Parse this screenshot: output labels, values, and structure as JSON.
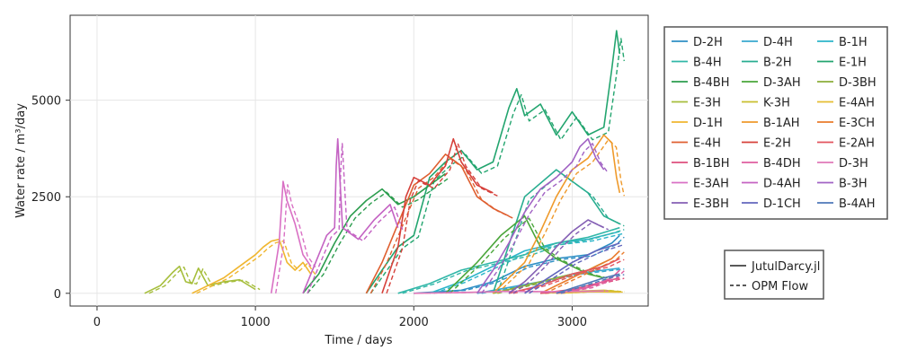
{
  "chart_data": {
    "type": "line",
    "title": "",
    "xlabel": "Time / days",
    "ylabel": "Water rate / m³/day",
    "xlim": [
      -170,
      3480
    ],
    "ylim": [
      -330,
      7200
    ],
    "xticks": [
      0,
      1000,
      2000,
      3000
    ],
    "yticks": [
      0,
      2500,
      5000
    ],
    "grid": true,
    "legend_position": "right",
    "style_legend": [
      {
        "label": "JutulDarcy.jl",
        "style": "solid"
      },
      {
        "label": "OPM Flow",
        "style": "dashed"
      }
    ],
    "series": [
      {
        "name": "D-2H",
        "color": "#2f8fc5",
        "points": [
          [
            2000,
            0
          ],
          [
            2300,
            80
          ],
          [
            2500,
            300
          ],
          [
            2700,
            700
          ],
          [
            2900,
            900
          ],
          [
            3100,
            1000
          ],
          [
            3250,
            1300
          ],
          [
            3300,
            1500
          ]
        ]
      },
      {
        "name": "D-4H",
        "color": "#38a8cf",
        "points": [
          [
            2400,
            0
          ],
          [
            2600,
            150
          ],
          [
            2800,
            300
          ],
          [
            3000,
            500
          ],
          [
            3200,
            600
          ],
          [
            3300,
            650
          ]
        ]
      },
      {
        "name": "B-1H",
        "color": "#2bb5c9",
        "points": [
          [
            2100,
            0
          ],
          [
            2300,
            300
          ],
          [
            2500,
            700
          ],
          [
            2700,
            1100
          ],
          [
            2900,
            1300
          ],
          [
            3100,
            1400
          ],
          [
            3300,
            1600
          ]
        ]
      },
      {
        "name": "B-4H",
        "color": "#31b7a8",
        "points": [
          [
            1900,
            0
          ],
          [
            2100,
            250
          ],
          [
            2300,
            600
          ],
          [
            2500,
            800
          ],
          [
            2700,
            1000
          ],
          [
            2900,
            1300
          ],
          [
            3100,
            1450
          ],
          [
            3300,
            1700
          ]
        ]
      },
      {
        "name": "B-2H",
        "color": "#28ad90",
        "points": [
          [
            2500,
            0
          ],
          [
            2700,
            2500
          ],
          [
            2900,
            3200
          ],
          [
            3100,
            2600
          ],
          [
            3200,
            2000
          ],
          [
            3300,
            1800
          ]
        ]
      },
      {
        "name": "E-1H",
        "color": "#23a56f",
        "points": [
          [
            1700,
            0
          ],
          [
            1800,
            600
          ],
          [
            1900,
            1200
          ],
          [
            2000,
            1500
          ],
          [
            2100,
            3000
          ],
          [
            2200,
            3400
          ],
          [
            2300,
            3700
          ],
          [
            2400,
            3200
          ],
          [
            2500,
            3400
          ],
          [
            2600,
            4800
          ],
          [
            2650,
            5300
          ],
          [
            2700,
            4600
          ],
          [
            2800,
            4900
          ],
          [
            2900,
            4100
          ],
          [
            3000,
            4700
          ],
          [
            3100,
            4100
          ],
          [
            3200,
            4300
          ],
          [
            3250,
            5800
          ],
          [
            3280,
            6800
          ],
          [
            3300,
            6200
          ]
        ]
      },
      {
        "name": "B-4BH",
        "color": "#2c9d4e",
        "points": [
          [
            1300,
            0
          ],
          [
            1400,
            500
          ],
          [
            1500,
            1300
          ],
          [
            1600,
            2000
          ],
          [
            1700,
            2400
          ],
          [
            1800,
            2700
          ],
          [
            1900,
            2300
          ],
          [
            2000,
            2500
          ],
          [
            2100,
            2800
          ],
          [
            2200,
            3100
          ]
        ]
      },
      {
        "name": "D-3AH",
        "color": "#4aa63a",
        "points": [
          [
            2200,
            0
          ],
          [
            2400,
            800
          ],
          [
            2550,
            1500
          ],
          [
            2700,
            2000
          ],
          [
            2800,
            1200
          ],
          [
            2900,
            900
          ],
          [
            3000,
            700
          ],
          [
            3100,
            500
          ],
          [
            3200,
            400
          ]
        ]
      },
      {
        "name": "D-3BH",
        "color": "#8cae3a",
        "points": [
          [
            2500,
            0
          ],
          [
            2700,
            200
          ],
          [
            2900,
            400
          ],
          [
            3100,
            600
          ],
          [
            3200,
            800
          ]
        ]
      },
      {
        "name": "E-3H",
        "color": "#a6be3c",
        "points": [
          [
            300,
            0
          ],
          [
            400,
            200
          ],
          [
            480,
            550
          ],
          [
            520,
            700
          ],
          [
            560,
            300
          ],
          [
            600,
            250
          ],
          [
            640,
            650
          ],
          [
            700,
            200
          ],
          [
            800,
            300
          ],
          [
            900,
            350
          ],
          [
            1000,
            100
          ]
        ]
      },
      {
        "name": "K-3H",
        "color": "#c9bf2f",
        "points": [
          [
            2800,
            0
          ],
          [
            3000,
            50
          ],
          [
            3200,
            80
          ],
          [
            3300,
            40
          ]
        ]
      },
      {
        "name": "E-4AH",
        "color": "#e5be32",
        "points": [
          [
            2900,
            0
          ],
          [
            3100,
            40
          ],
          [
            3300,
            30
          ]
        ]
      },
      {
        "name": "D-1H",
        "color": "#f0b62f",
        "points": [
          [
            600,
            0
          ],
          [
            700,
            200
          ],
          [
            800,
            400
          ],
          [
            900,
            700
          ],
          [
            1000,
            1000
          ],
          [
            1050,
            1200
          ],
          [
            1100,
            1350
          ],
          [
            1150,
            1400
          ],
          [
            1200,
            800
          ],
          [
            1250,
            600
          ],
          [
            1300,
            800
          ],
          [
            1350,
            500
          ]
        ]
      },
      {
        "name": "B-1AH",
        "color": "#ef9a2b",
        "points": [
          [
            2500,
            0
          ],
          [
            2700,
            800
          ],
          [
            2800,
            1600
          ],
          [
            2900,
            2500
          ],
          [
            3000,
            3200
          ],
          [
            3100,
            3500
          ],
          [
            3150,
            3800
          ],
          [
            3200,
            4100
          ],
          [
            3250,
            3900
          ],
          [
            3280,
            3000
          ],
          [
            3300,
            2600
          ]
        ]
      },
      {
        "name": "E-3CH",
        "color": "#e97c2c",
        "points": [
          [
            2800,
            0
          ],
          [
            2950,
            300
          ],
          [
            3100,
            600
          ],
          [
            3250,
            900
          ],
          [
            3300,
            1100
          ]
        ]
      },
      {
        "name": "E-4H",
        "color": "#df5f30",
        "points": [
          [
            1700,
            0
          ],
          [
            1800,
            800
          ],
          [
            1900,
            1800
          ],
          [
            2000,
            2800
          ],
          [
            2100,
            3100
          ],
          [
            2200,
            3600
          ],
          [
            2300,
            3300
          ],
          [
            2400,
            2500
          ],
          [
            2500,
            2200
          ],
          [
            2600,
            2000
          ]
        ]
      },
      {
        "name": "E-2H",
        "color": "#d6403a",
        "points": [
          [
            1800,
            0
          ],
          [
            1900,
            1200
          ],
          [
            1950,
            2500
          ],
          [
            2000,
            3000
          ],
          [
            2100,
            2800
          ],
          [
            2200,
            3300
          ],
          [
            2250,
            4000
          ],
          [
            2300,
            3400
          ],
          [
            2400,
            2800
          ],
          [
            2500,
            2600
          ]
        ]
      },
      {
        "name": "E-2AH",
        "color": "#e3545e",
        "points": [
          [
            2600,
            0
          ],
          [
            2800,
            200
          ],
          [
            3000,
            500
          ],
          [
            3200,
            700
          ],
          [
            3300,
            900
          ]
        ]
      },
      {
        "name": "B-1BH",
        "color": "#de4f7e",
        "points": [
          [
            2800,
            0
          ],
          [
            3000,
            100
          ],
          [
            3200,
            300
          ],
          [
            3300,
            400
          ]
        ]
      },
      {
        "name": "B-4DH",
        "color": "#df5ea1",
        "points": [
          [
            2900,
            0
          ],
          [
            3100,
            150
          ],
          [
            3250,
            400
          ],
          [
            3300,
            600
          ]
        ]
      },
      {
        "name": "D-3H",
        "color": "#e078b8",
        "points": [
          [
            2000,
            0
          ],
          [
            2300,
            20
          ],
          [
            2600,
            50
          ],
          [
            2900,
            40
          ],
          [
            3200,
            60
          ]
        ]
      },
      {
        "name": "E-3AH",
        "color": "#d970c4",
        "points": [
          [
            1100,
            0
          ],
          [
            1150,
            1300
          ],
          [
            1175,
            2900
          ],
          [
            1200,
            2400
          ],
          [
            1250,
            1800
          ],
          [
            1300,
            1000
          ],
          [
            1350,
            700
          ]
        ]
      },
      {
        "name": "D-4AH",
        "color": "#c463c3",
        "points": [
          [
            1300,
            0
          ],
          [
            1400,
            1000
          ],
          [
            1450,
            1500
          ],
          [
            1500,
            1700
          ],
          [
            1510,
            3300
          ],
          [
            1520,
            4000
          ],
          [
            1550,
            1700
          ],
          [
            1650,
            1400
          ],
          [
            1750,
            1900
          ],
          [
            1850,
            2300
          ],
          [
            1900,
            1700
          ]
        ]
      },
      {
        "name": "B-3H",
        "color": "#a163c4",
        "points": [
          [
            2400,
            0
          ],
          [
            2500,
            600
          ],
          [
            2600,
            1300
          ],
          [
            2700,
            2100
          ],
          [
            2800,
            2700
          ],
          [
            2900,
            3000
          ],
          [
            3000,
            3400
          ],
          [
            3050,
            3800
          ],
          [
            3100,
            4000
          ],
          [
            3150,
            3500
          ],
          [
            3200,
            3200
          ]
        ]
      },
      {
        "name": "E-3BH",
        "color": "#845fb4",
        "points": [
          [
            2600,
            0
          ],
          [
            2700,
            300
          ],
          [
            2800,
            700
          ],
          [
            2900,
            1200
          ],
          [
            3000,
            1600
          ],
          [
            3100,
            1900
          ],
          [
            3200,
            1700
          ]
        ]
      },
      {
        "name": "D-1CH",
        "color": "#6366bd",
        "points": [
          [
            2700,
            0
          ],
          [
            2850,
            400
          ],
          [
            3000,
            800
          ],
          [
            3150,
            1100
          ],
          [
            3300,
            1300
          ]
        ]
      },
      {
        "name": "B-4AH",
        "color": "#4e78b8",
        "points": [
          [
            2900,
            0
          ],
          [
            3050,
            200
          ],
          [
            3200,
            400
          ],
          [
            3300,
            500
          ]
        ]
      }
    ]
  }
}
